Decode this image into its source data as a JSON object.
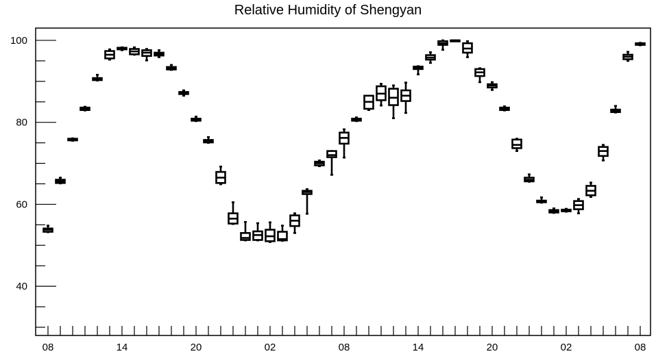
{
  "chart_data": {
    "type": "boxplot",
    "title": "Relative Humidity of Shengyan",
    "xlabel": "",
    "ylabel": "",
    "ylim": [
      28,
      103
    ],
    "yticks_labeled": [
      40,
      60,
      80,
      100
    ],
    "xtick_labels": [
      "08",
      "14",
      "20",
      "02",
      "08",
      "14",
      "20",
      "02",
      "08"
    ],
    "grid": false,
    "boxes": [
      {
        "t": 0,
        "min": 53.2,
        "q1": 53.3,
        "median": 53.8,
        "q3": 54.1,
        "max": 54.8
      },
      {
        "t": 1,
        "min": 65.1,
        "q1": 65.2,
        "median": 65.6,
        "q3": 66.0,
        "max": 66.5
      },
      {
        "t": 2,
        "min": 75.5,
        "q1": 75.6,
        "median": 75.8,
        "q3": 76.0,
        "max": 76.1
      },
      {
        "t": 3,
        "min": 82.9,
        "q1": 83.0,
        "median": 83.3,
        "q3": 83.6,
        "max": 83.8
      },
      {
        "t": 4,
        "min": 90.2,
        "q1": 90.3,
        "median": 90.6,
        "q3": 90.8,
        "max": 91.6
      },
      {
        "t": 5,
        "min": 95.3,
        "q1": 95.6,
        "median": 96.5,
        "q3": 97.4,
        "max": 97.8
      },
      {
        "t": 6,
        "min": 97.6,
        "q1": 97.8,
        "median": 98.0,
        "q3": 98.2,
        "max": 98.3
      },
      {
        "t": 7,
        "min": 96.5,
        "q1": 96.6,
        "median": 97.3,
        "q3": 97.9,
        "max": 98.3
      },
      {
        "t": 8,
        "min": 95.1,
        "q1": 96.2,
        "median": 97.0,
        "q3": 97.6,
        "max": 97.9
      },
      {
        "t": 9,
        "min": 95.9,
        "q1": 96.3,
        "median": 96.7,
        "q3": 97.0,
        "max": 97.6
      },
      {
        "t": 10,
        "min": 92.8,
        "q1": 92.9,
        "median": 93.2,
        "q3": 93.5,
        "max": 94.0
      },
      {
        "t": 11,
        "min": 86.5,
        "q1": 86.9,
        "median": 87.2,
        "q3": 87.4,
        "max": 87.8
      },
      {
        "t": 12,
        "min": 80.3,
        "q1": 80.4,
        "median": 80.7,
        "q3": 80.9,
        "max": 81.4
      },
      {
        "t": 13,
        "min": 75.0,
        "q1": 75.1,
        "median": 75.4,
        "q3": 75.7,
        "max": 76.4
      },
      {
        "t": 14,
        "min": 64.9,
        "q1": 65.2,
        "median": 66.5,
        "q3": 67.9,
        "max": 69.2
      },
      {
        "t": 15,
        "min": 55.2,
        "q1": 55.3,
        "median": 56.5,
        "q3": 57.8,
        "max": 60.5
      },
      {
        "t": 16,
        "min": 51.2,
        "q1": 51.3,
        "median": 51.8,
        "q3": 53.0,
        "max": 55.7
      },
      {
        "t": 17,
        "min": 51.2,
        "q1": 51.3,
        "median": 52.5,
        "q3": 53.4,
        "max": 55.4
      },
      {
        "t": 18,
        "min": 50.8,
        "q1": 51.0,
        "median": 52.2,
        "q3": 53.8,
        "max": 55.6
      },
      {
        "t": 19,
        "min": 51.1,
        "q1": 51.2,
        "median": 51.5,
        "q3": 53.3,
        "max": 54.8
      },
      {
        "t": 20,
        "min": 53.0,
        "q1": 54.7,
        "median": 56.0,
        "q3": 57.3,
        "max": 57.8
      },
      {
        "t": 21,
        "min": 57.7,
        "q1": 62.5,
        "median": 63.0,
        "q3": 63.3,
        "max": 63.7
      },
      {
        "t": 22,
        "min": 69.3,
        "q1": 69.5,
        "median": 70.0,
        "q3": 70.4,
        "max": 70.7
      },
      {
        "t": 23,
        "min": 67.2,
        "q1": 71.5,
        "median": 72.0,
        "q3": 73.0,
        "max": 73.0
      },
      {
        "t": 24,
        "min": 71.4,
        "q1": 74.8,
        "median": 76.2,
        "q3": 77.5,
        "max": 78.3
      },
      {
        "t": 25,
        "min": 80.3,
        "q1": 80.4,
        "median": 80.7,
        "q3": 80.9,
        "max": 81.2
      },
      {
        "t": 26,
        "min": 83.0,
        "q1": 83.3,
        "median": 85.0,
        "q3": 86.5,
        "max": 86.5
      },
      {
        "t": 27,
        "min": 84.1,
        "q1": 85.4,
        "median": 87.0,
        "q3": 88.8,
        "max": 89.4
      },
      {
        "t": 28,
        "min": 81.0,
        "q1": 84.2,
        "median": 86.0,
        "q3": 88.2,
        "max": 89.0
      },
      {
        "t": 29,
        "min": 82.3,
        "q1": 85.2,
        "median": 86.5,
        "q3": 87.8,
        "max": 89.7
      },
      {
        "t": 30,
        "min": 91.7,
        "q1": 93.0,
        "median": 93.3,
        "q3": 93.6,
        "max": 93.7
      },
      {
        "t": 31,
        "min": 94.5,
        "q1": 95.3,
        "median": 95.8,
        "q3": 96.4,
        "max": 97.1
      },
      {
        "t": 32,
        "min": 97.7,
        "q1": 98.9,
        "median": 99.3,
        "q3": 99.8,
        "max": 100.0
      },
      {
        "t": 33,
        "min": 99.8,
        "q1": 99.9,
        "median": 100.0,
        "q3": 100.0,
        "max": 100.0
      },
      {
        "t": 34,
        "min": 95.9,
        "q1": 97.0,
        "median": 98.0,
        "q3": 99.3,
        "max": 99.8
      },
      {
        "t": 35,
        "min": 89.8,
        "q1": 91.3,
        "median": 92.2,
        "q3": 93.0,
        "max": 93.2
      },
      {
        "t": 36,
        "min": 87.9,
        "q1": 88.5,
        "median": 89.0,
        "q3": 89.3,
        "max": 89.8
      },
      {
        "t": 37,
        "min": 82.9,
        "q1": 83.0,
        "median": 83.3,
        "q3": 83.6,
        "max": 83.9
      },
      {
        "t": 38,
        "min": 73.0,
        "q1": 73.7,
        "median": 74.5,
        "q3": 75.8,
        "max": 76.0
      },
      {
        "t": 39,
        "min": 65.5,
        "q1": 65.6,
        "median": 66.0,
        "q3": 66.5,
        "max": 67.3
      },
      {
        "t": 40,
        "min": 60.4,
        "q1": 60.5,
        "median": 60.7,
        "q3": 60.9,
        "max": 61.7
      },
      {
        "t": 41,
        "min": 57.9,
        "q1": 58.0,
        "median": 58.3,
        "q3": 58.6,
        "max": 59.0
      },
      {
        "t": 42,
        "min": 58.2,
        "q1": 58.3,
        "median": 58.5,
        "q3": 58.7,
        "max": 58.9
      },
      {
        "t": 43,
        "min": 57.8,
        "q1": 58.8,
        "median": 59.8,
        "q3": 60.8,
        "max": 61.3
      },
      {
        "t": 44,
        "min": 61.8,
        "q1": 62.2,
        "median": 63.3,
        "q3": 64.5,
        "max": 65.3
      },
      {
        "t": 45,
        "min": 70.7,
        "q1": 71.8,
        "median": 73.0,
        "q3": 74.0,
        "max": 74.5
      },
      {
        "t": 46,
        "min": 82.4,
        "q1": 82.5,
        "median": 82.8,
        "q3": 83.1,
        "max": 84.0
      },
      {
        "t": 47,
        "min": 95.0,
        "q1": 95.4,
        "median": 96.0,
        "q3": 96.5,
        "max": 97.2
      },
      {
        "t": 48,
        "min": 98.8,
        "q1": 98.9,
        "median": 99.1,
        "q3": 99.3,
        "max": 99.4
      }
    ]
  }
}
